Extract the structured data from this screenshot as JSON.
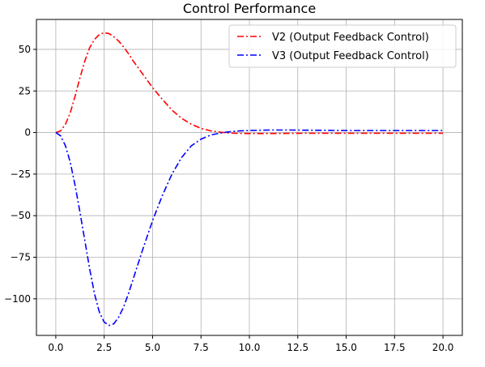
{
  "chart_data": {
    "type": "line",
    "title": "Control Performance",
    "xlabel": "",
    "ylabel": "",
    "xlim": [
      -1.0,
      21.0
    ],
    "ylim": [
      -122,
      68
    ],
    "xticks": [
      0.0,
      2.5,
      5.0,
      7.5,
      10.0,
      12.5,
      15.0,
      17.5,
      20.0
    ],
    "xtick_labels": [
      "0.0",
      "2.5",
      "5.0",
      "7.5",
      "10.0",
      "12.5",
      "15.0",
      "17.5",
      "20.0"
    ],
    "yticks": [
      50,
      25,
      0,
      -25,
      -50,
      -75,
      -100
    ],
    "ytick_labels": [
      "50",
      "25",
      "0",
      "−25",
      "−50",
      "−75",
      "−100"
    ],
    "grid": true,
    "legend_position": "top-right",
    "series": [
      {
        "name": "V2 (Output Feedback Control)",
        "color": "#ff0000",
        "style": "dashdot",
        "x": [
          0,
          0.25,
          0.5,
          0.75,
          1.0,
          1.25,
          1.5,
          1.75,
          2.0,
          2.25,
          2.5,
          2.75,
          3.0,
          3.25,
          3.5,
          3.75,
          4.0,
          4.5,
          5.0,
          5.5,
          6.0,
          6.5,
          7.0,
          7.5,
          8.0,
          8.5,
          9.0,
          9.5,
          10.0,
          11.0,
          12.0,
          13.0,
          14.0,
          15.0,
          16.0,
          17.0,
          18.0,
          19.0,
          20.0
        ],
        "y": [
          0,
          1,
          5,
          12,
          22,
          33,
          43,
          51,
          56,
          59,
          60,
          59.5,
          57.5,
          55,
          51.5,
          47.5,
          43,
          35,
          27,
          20,
          13.5,
          8.5,
          5,
          2.5,
          1,
          0.2,
          -0.3,
          -0.5,
          -0.6,
          -0.6,
          -0.5,
          -0.4,
          -0.4,
          -0.4,
          -0.4,
          -0.4,
          -0.4,
          -0.4,
          -0.4
        ]
      },
      {
        "name": "V3 (Output Feedback Control)",
        "color": "#0000ff",
        "style": "dashdot",
        "x": [
          0,
          0.25,
          0.5,
          0.75,
          1.0,
          1.25,
          1.5,
          1.75,
          2.0,
          2.25,
          2.5,
          2.75,
          3.0,
          3.25,
          3.5,
          3.75,
          4.0,
          4.5,
          5.0,
          5.5,
          6.0,
          6.5,
          7.0,
          7.5,
          8.0,
          8.5,
          9.0,
          9.5,
          10.0,
          11.0,
          12.0,
          13.0,
          14.0,
          15.0,
          16.0,
          17.0,
          18.0,
          19.0,
          20.0
        ],
        "y": [
          0,
          -2,
          -8,
          -18,
          -32,
          -48,
          -65,
          -82,
          -97,
          -108,
          -114,
          -116,
          -115,
          -111,
          -105,
          -97,
          -88,
          -70,
          -53,
          -38,
          -25,
          -15,
          -8,
          -4,
          -1.5,
          -0.3,
          0.5,
          1,
          1.2,
          1.5,
          1.5,
          1.4,
          1.3,
          1.2,
          1.2,
          1.2,
          1.2,
          1.2,
          1.2
        ]
      }
    ]
  }
}
